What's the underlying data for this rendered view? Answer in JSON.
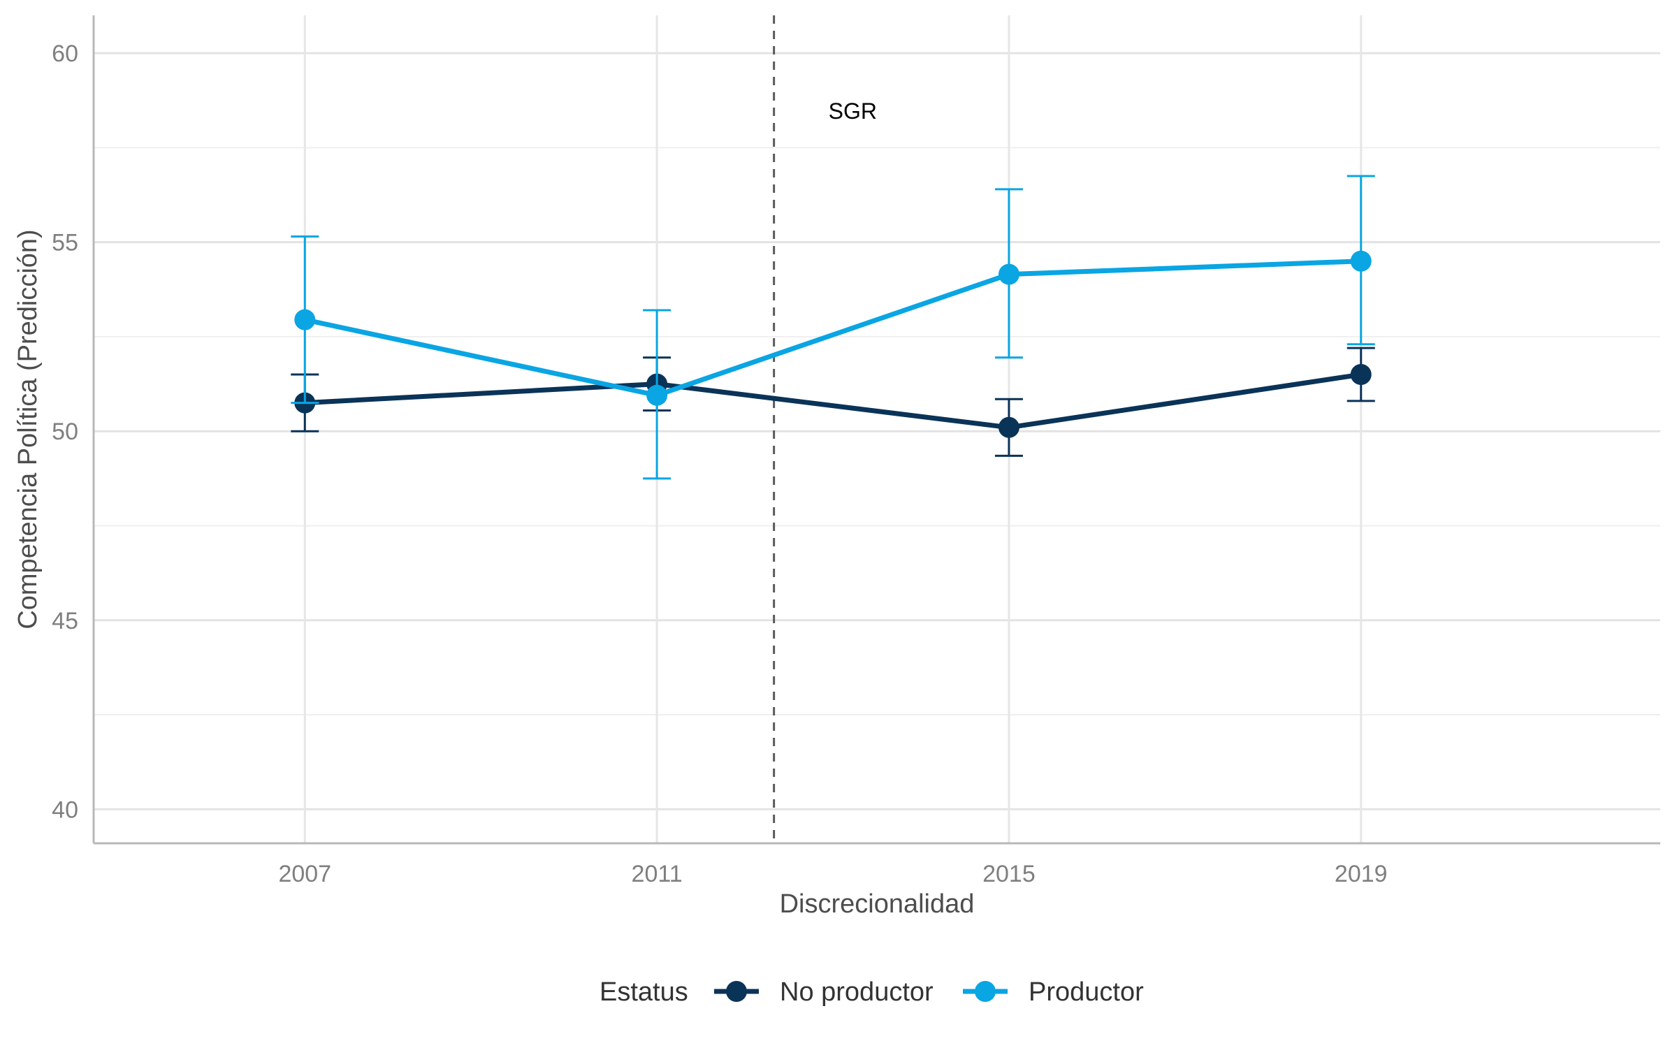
{
  "chart_data": {
    "type": "line",
    "title": "",
    "xlabel": "Discrecionalidad",
    "ylabel": "Competencia Política (Predicción)",
    "categories": [
      "2007",
      "2011",
      "2015",
      "2019"
    ],
    "xlim": [
      2004.6,
      2022.4
    ],
    "ylim": [
      39.1,
      61
    ],
    "yticks": [
      40,
      45,
      50,
      55,
      60
    ],
    "grid": true,
    "legend": {
      "title": "Estatus",
      "position": "bottom",
      "entries": [
        "No productor",
        "Productor"
      ]
    },
    "vline": {
      "x": 2012.33,
      "label": "SGR",
      "style": "dashed"
    },
    "series": [
      {
        "name": "No productor",
        "color": "#0a3358",
        "x": [
          2007,
          2011,
          2015,
          2019
        ],
        "values": [
          50.75,
          51.25,
          50.1,
          51.5
        ],
        "lower": [
          50.0,
          50.55,
          49.35,
          50.8
        ],
        "upper": [
          51.5,
          51.95,
          50.85,
          52.2
        ]
      },
      {
        "name": "Productor",
        "color": "#0aa5e3",
        "x": [
          2007,
          2011,
          2015,
          2019
        ],
        "values": [
          52.95,
          50.95,
          54.15,
          54.5
        ],
        "lower": [
          50.75,
          48.75,
          51.95,
          52.3
        ],
        "upper": [
          55.15,
          53.2,
          56.4,
          56.75
        ]
      }
    ]
  }
}
